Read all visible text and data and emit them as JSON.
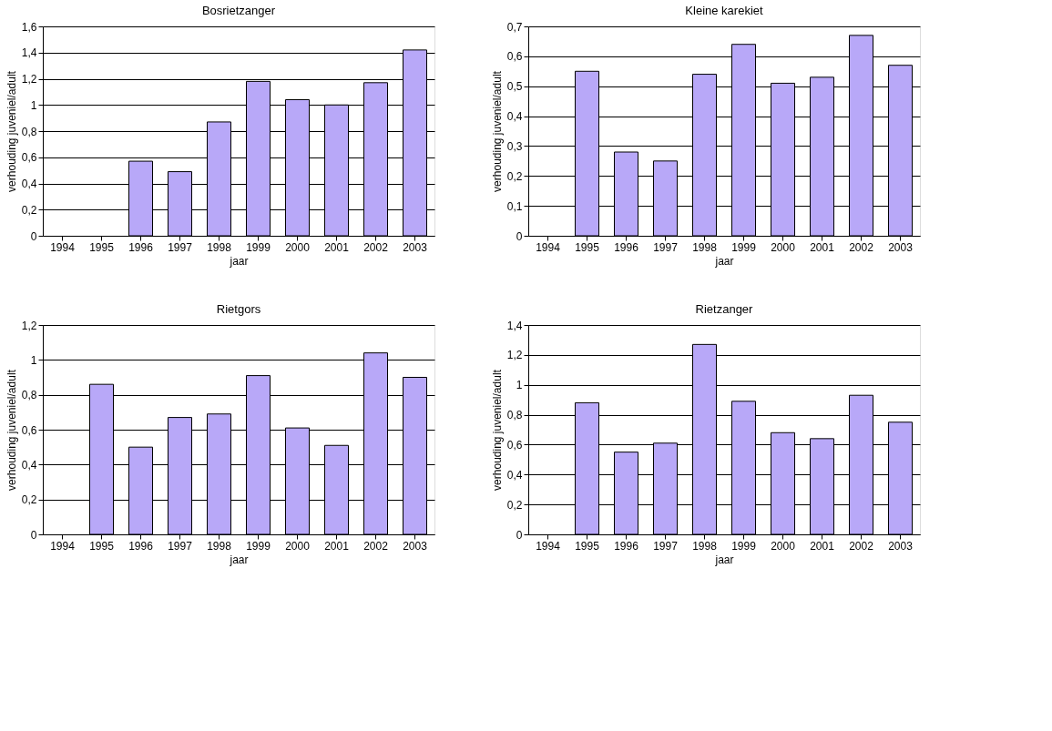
{
  "chart_data": [
    {
      "type": "bar",
      "title": "Bosrietzanger",
      "xlabel": "jaar",
      "ylabel": "verhouding juveniel/adult",
      "categories": [
        "1994",
        "1995",
        "1996",
        "1997",
        "1998",
        "1999",
        "2000",
        "2001",
        "2002",
        "2003"
      ],
      "values": [
        null,
        null,
        0.57,
        0.49,
        0.87,
        1.18,
        1.04,
        1.0,
        1.17,
        1.42
      ],
      "color": "#b8a8f8",
      "ylim": [
        0,
        1.6
      ],
      "yticks": [
        {
          "value": 0,
          "label": "0"
        },
        {
          "value": 0.2,
          "label": "0,2"
        },
        {
          "value": 0.4,
          "label": "0,4"
        },
        {
          "value": 0.6,
          "label": "0,6"
        },
        {
          "value": 0.8,
          "label": "0,8"
        },
        {
          "value": 1,
          "label": "1"
        },
        {
          "value": 1.2,
          "label": "1,2"
        },
        {
          "value": 1.4,
          "label": "1,4"
        },
        {
          "value": 1.6,
          "label": "1,6"
        }
      ],
      "grid": "y"
    },
    {
      "type": "bar",
      "title": "Kleine karekiet",
      "xlabel": "jaar",
      "ylabel": "verhouding juveniel/adult",
      "categories": [
        "1994",
        "1995",
        "1996",
        "1997",
        "1998",
        "1999",
        "2000",
        "2001",
        "2002",
        "2003"
      ],
      "values": [
        null,
        0.55,
        0.28,
        0.25,
        0.54,
        0.64,
        0.51,
        0.53,
        0.67,
        0.57
      ],
      "color": "#b8a8f8",
      "ylim": [
        0,
        0.7
      ],
      "yticks": [
        {
          "value": 0,
          "label": "0"
        },
        {
          "value": 0.1,
          "label": "0,1"
        },
        {
          "value": 0.2,
          "label": "0,2"
        },
        {
          "value": 0.3,
          "label": "0,3"
        },
        {
          "value": 0.4,
          "label": "0,4"
        },
        {
          "value": 0.5,
          "label": "0,5"
        },
        {
          "value": 0.6,
          "label": "0,6"
        },
        {
          "value": 0.7,
          "label": "0,7"
        }
      ],
      "grid": "y"
    },
    {
      "type": "bar",
      "title": "Rietgors",
      "xlabel": "jaar",
      "ylabel": "verhouding juveniel/adult",
      "categories": [
        "1994",
        "1995",
        "1996",
        "1997",
        "1998",
        "1999",
        "2000",
        "2001",
        "2002",
        "2003"
      ],
      "values": [
        null,
        0.86,
        0.5,
        0.67,
        0.69,
        0.91,
        0.61,
        0.51,
        1.04,
        0.9
      ],
      "color": "#b8a8f8",
      "ylim": [
        0,
        1.2
      ],
      "yticks": [
        {
          "value": 0,
          "label": "0"
        },
        {
          "value": 0.2,
          "label": "0,2"
        },
        {
          "value": 0.4,
          "label": "0,4"
        },
        {
          "value": 0.6,
          "label": "0,6"
        },
        {
          "value": 0.8,
          "label": "0,8"
        },
        {
          "value": 1,
          "label": "1"
        },
        {
          "value": 1.2,
          "label": "1,2"
        }
      ],
      "grid": "y"
    },
    {
      "type": "bar",
      "title": "Rietzanger",
      "xlabel": "jaar",
      "ylabel": "verhouding juveniel/adult",
      "categories": [
        "1994",
        "1995",
        "1996",
        "1997",
        "1998",
        "1999",
        "2000",
        "2001",
        "2002",
        "2003"
      ],
      "values": [
        null,
        0.88,
        0.55,
        0.61,
        1.27,
        0.89,
        0.68,
        0.64,
        0.93,
        0.75
      ],
      "color": "#b8a8f8",
      "ylim": [
        0,
        1.4
      ],
      "yticks": [
        {
          "value": 0,
          "label": "0"
        },
        {
          "value": 0.2,
          "label": "0,2"
        },
        {
          "value": 0.4,
          "label": "0,4"
        },
        {
          "value": 0.6,
          "label": "0,6"
        },
        {
          "value": 0.8,
          "label": "0,8"
        },
        {
          "value": 1,
          "label": "1"
        },
        {
          "value": 1.2,
          "label": "1,2"
        },
        {
          "value": 1.4,
          "label": "1,4"
        }
      ],
      "grid": "y"
    }
  ]
}
